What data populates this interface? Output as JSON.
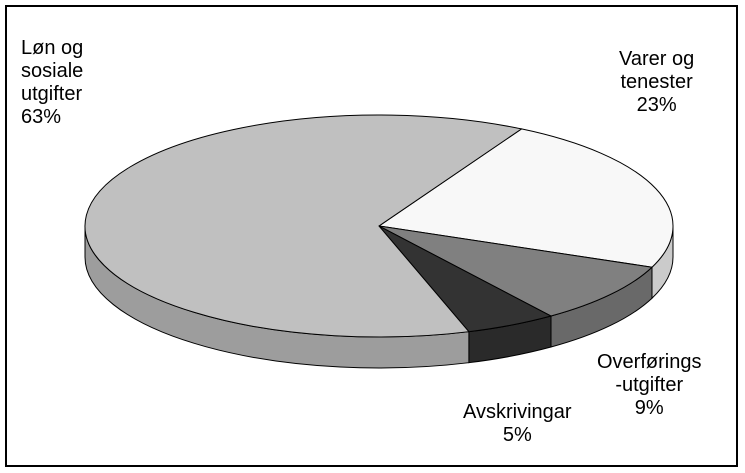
{
  "chart_data": {
    "type": "pie",
    "title": "",
    "labels": [
      "Løn og sosiale utgifter",
      "Varer og tenester",
      "Overførings-utgifter",
      "Avskrivingar"
    ],
    "values": [
      63,
      23,
      9,
      5
    ],
    "label_lines": [
      [
        "Løn og",
        "sosiale",
        "utgifter",
        "63%"
      ],
      [
        "Varer og",
        "tenester",
        "23%"
      ],
      [
        "Overførings",
        "-utgifter",
        "9%"
      ],
      [
        "Avskrivingar",
        "5%"
      ]
    ],
    "colors": [
      "#c0c0c0",
      "#f8f8f8",
      "#808080",
      "#333333"
    ],
    "style": "3d-pie",
    "legend": "none"
  }
}
